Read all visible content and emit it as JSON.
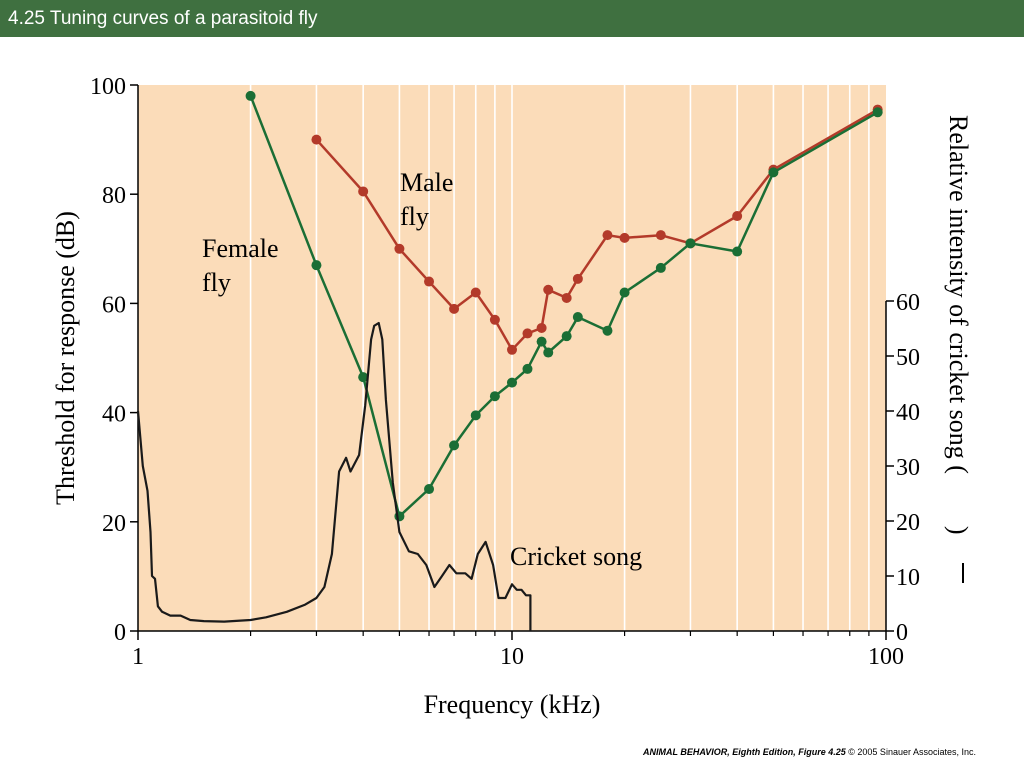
{
  "slide": {
    "title": "4.25  Tuning curves of a parasitoid fly",
    "credit_book": "ANIMAL BEHAVIOR, Eighth Edition,",
    "credit_figure": "Figure 4.25",
    "credit_copyright": "© 2005 Sinauer Associates, Inc."
  },
  "colors": {
    "title_bar": "#3f7040",
    "plot_bg": "#fbdcb9",
    "male": "#b33a2a",
    "female": "#1b6e35",
    "cricket": "#1a1a1a"
  },
  "chart_data": {
    "type": "line",
    "xscale": "log",
    "xlim": [
      1,
      100
    ],
    "ylim": [
      0,
      100
    ],
    "y2lim": [
      0,
      100
    ],
    "grid": "vertical",
    "xlabel": "Frequency (kHz)",
    "ylabel": "Threshold for response (dB)",
    "y2label": "Relative intensity of cricket song (",
    "y2label_suffix": ")",
    "xticks": [
      {
        "value": 1,
        "label": "1"
      },
      {
        "value": 10,
        "label": "10"
      },
      {
        "value": 100,
        "label": "100"
      }
    ],
    "yticks": [
      {
        "value": 0,
        "label": "0"
      },
      {
        "value": 20,
        "label": "20"
      },
      {
        "value": 40,
        "label": "40"
      },
      {
        "value": 60,
        "label": "60"
      },
      {
        "value": 80,
        "label": "80"
      },
      {
        "value": 100,
        "label": "100"
      }
    ],
    "y2ticks": [
      {
        "value": 0,
        "label": "0"
      },
      {
        "value": 10,
        "label": "10"
      },
      {
        "value": 20,
        "label": "20"
      },
      {
        "value": 30,
        "label": "30"
      },
      {
        "value": 40,
        "label": "40"
      },
      {
        "value": 50,
        "label": "50"
      },
      {
        "value": 60,
        "label": "60"
      }
    ],
    "series": [
      {
        "name": "Male fly",
        "label_line1": "Male",
        "label_line2": "fly",
        "markers": true,
        "points": [
          [
            3,
            90
          ],
          [
            4,
            80.5
          ],
          [
            5,
            70
          ],
          [
            6,
            64
          ],
          [
            7,
            59
          ],
          [
            8,
            62
          ],
          [
            9,
            57
          ],
          [
            10,
            51.5
          ],
          [
            11,
            54.5
          ],
          [
            12,
            55.5
          ],
          [
            12.5,
            62.5
          ],
          [
            14,
            61
          ],
          [
            15,
            64.5
          ],
          [
            18,
            72.5
          ],
          [
            20,
            72
          ],
          [
            25,
            72.5
          ],
          [
            30,
            71
          ],
          [
            40,
            76
          ],
          [
            50,
            84.5
          ],
          [
            95,
            95.5
          ]
        ]
      },
      {
        "name": "Female fly",
        "label_line1": "Female",
        "label_line2": "fly",
        "markers": true,
        "points": [
          [
            2,
            98
          ],
          [
            3,
            67
          ],
          [
            4,
            46.5
          ],
          [
            5,
            21
          ],
          [
            6,
            26
          ],
          [
            7,
            34
          ],
          [
            8,
            39.5
          ],
          [
            9,
            43
          ],
          [
            10,
            45.5
          ],
          [
            11,
            48
          ],
          [
            12,
            53
          ],
          [
            12.5,
            51
          ],
          [
            14,
            54
          ],
          [
            15,
            57.5
          ],
          [
            18,
            55
          ],
          [
            20,
            62
          ],
          [
            25,
            66.5
          ],
          [
            30,
            71
          ],
          [
            40,
            69.5
          ],
          [
            50,
            84
          ],
          [
            95,
            95
          ]
        ]
      },
      {
        "name": "Cricket song",
        "label_line1": "Cricket song",
        "markers": false,
        "axis": "y2",
        "points": [
          [
            1,
            40
          ],
          [
            1.03,
            30
          ],
          [
            1.06,
            25.5
          ],
          [
            1.08,
            18
          ],
          [
            1.09,
            10
          ],
          [
            1.11,
            9.5
          ],
          [
            1.13,
            4.5
          ],
          [
            1.16,
            3.5
          ],
          [
            1.22,
            2.8
          ],
          [
            1.3,
            2.8
          ],
          [
            1.38,
            2
          ],
          [
            1.5,
            1.8
          ],
          [
            1.7,
            1.7
          ],
          [
            2.0,
            2
          ],
          [
            2.2,
            2.5
          ],
          [
            2.5,
            3.5
          ],
          [
            2.8,
            4.8
          ],
          [
            3.0,
            6
          ],
          [
            3.15,
            8
          ],
          [
            3.3,
            14
          ],
          [
            3.45,
            29
          ],
          [
            3.6,
            31.5
          ],
          [
            3.7,
            29
          ],
          [
            3.9,
            32
          ],
          [
            4.05,
            41
          ],
          [
            4.2,
            53
          ],
          [
            4.28,
            55.5
          ],
          [
            4.4,
            56
          ],
          [
            4.5,
            53
          ],
          [
            4.6,
            42
          ],
          [
            4.8,
            27
          ],
          [
            5.0,
            18
          ],
          [
            5.3,
            14.5
          ],
          [
            5.6,
            14
          ],
          [
            5.9,
            12
          ],
          [
            6.2,
            8
          ],
          [
            6.5,
            10
          ],
          [
            6.8,
            12
          ],
          [
            7.1,
            10.5
          ],
          [
            7.5,
            10.5
          ],
          [
            7.8,
            9.5
          ],
          [
            8.1,
            14
          ],
          [
            8.5,
            16.2
          ],
          [
            8.9,
            12
          ],
          [
            9.2,
            6
          ],
          [
            9.6,
            6
          ],
          [
            10.0,
            8.5
          ],
          [
            10.3,
            7.5
          ],
          [
            10.6,
            7.5
          ],
          [
            10.9,
            6.5
          ],
          [
            11.2,
            6.5
          ],
          [
            11.2,
            0
          ]
        ]
      }
    ]
  }
}
